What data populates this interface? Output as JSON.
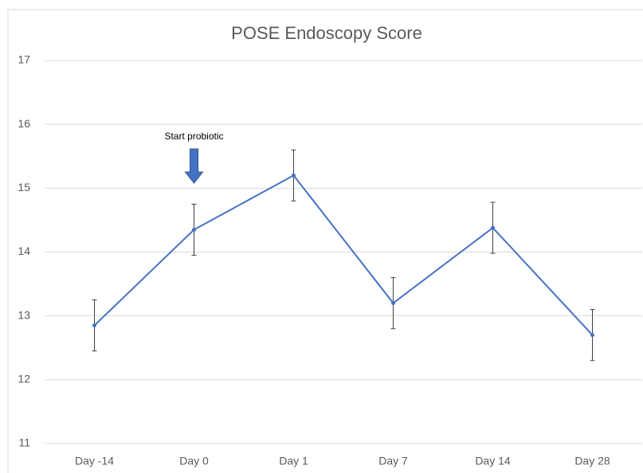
{
  "chart_data": {
    "type": "line",
    "title": "POSE Endoscopy Score",
    "categories": [
      "Day -14",
      "Day 0",
      "Day 1",
      "Day 7",
      "Day 14",
      "Day 28"
    ],
    "series": [
      {
        "name": "POSE Endoscopy Score",
        "color": "#4472c4",
        "values": [
          12.85,
          14.35,
          15.2,
          13.2,
          14.38,
          12.7
        ],
        "errors": [
          0.4,
          0.4,
          0.4,
          0.4,
          0.4,
          0.4
        ]
      }
    ],
    "ylim": [
      11,
      17
    ],
    "yticks": [
      11,
      12,
      13,
      14,
      15,
      16,
      17
    ],
    "grid": true,
    "annotations": [
      {
        "text": "Start probiotic",
        "category": "Day 0"
      }
    ]
  }
}
